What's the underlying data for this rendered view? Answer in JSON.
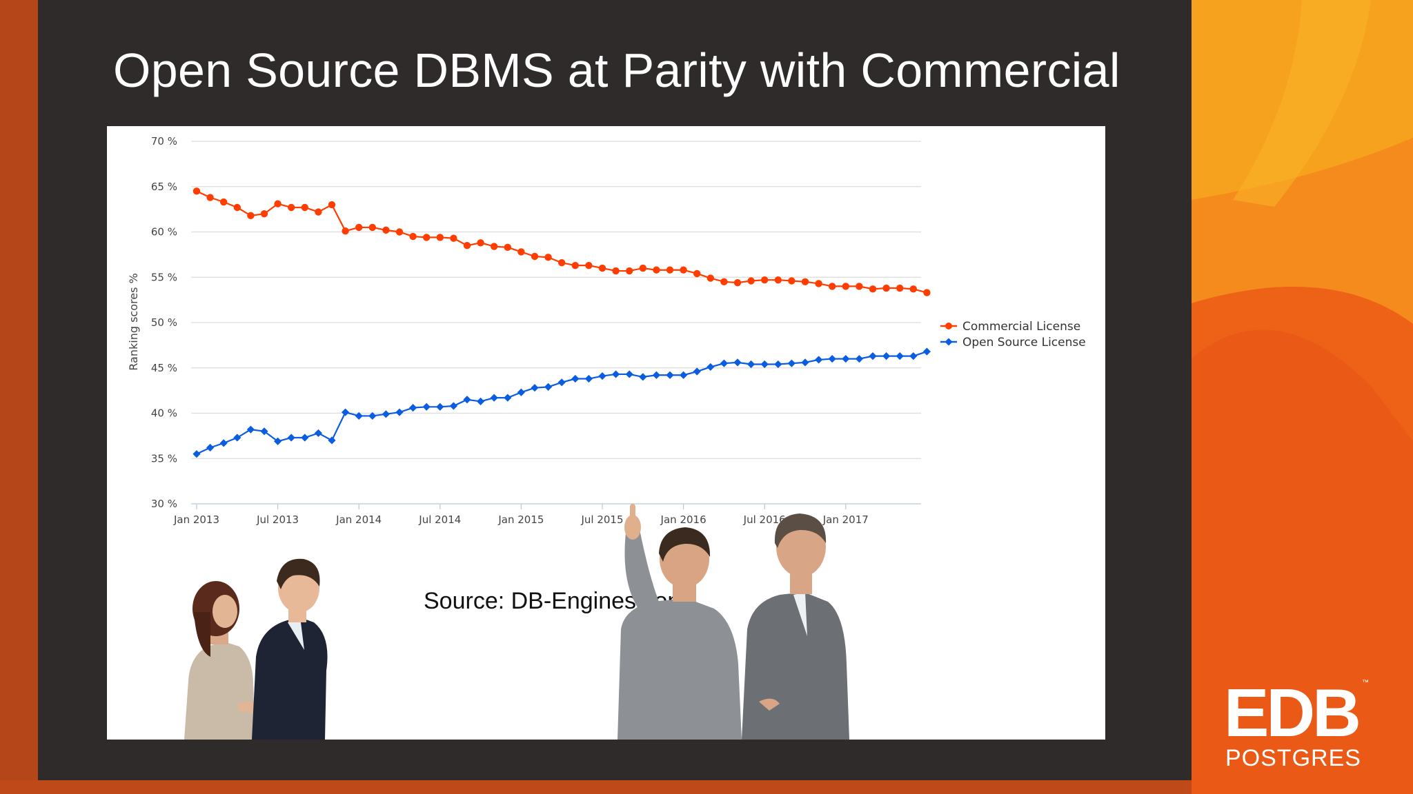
{
  "slide": {
    "title": "Open Source DBMS at Parity with Commercial",
    "source_note": "Source: DB-Engines.com"
  },
  "logo": {
    "mark": "EDB",
    "sub": "POSTGRES",
    "trademark": "™"
  },
  "colors": {
    "slide_bg": "#2f2b2b",
    "brand_orange": "#f26c16",
    "commercial_series": "#ff3d00",
    "open_source_series": "#0a5de0"
  },
  "chart_data": {
    "type": "line",
    "title": "",
    "xlabel": "",
    "ylabel": "Ranking scores %",
    "ylim": [
      30,
      70
    ],
    "yticks": [
      30,
      35,
      40,
      45,
      50,
      55,
      60,
      65,
      70
    ],
    "ytick_labels": [
      "30 %",
      "35 %",
      "40 %",
      "45 %",
      "50 %",
      "55 %",
      "60 %",
      "65 %",
      "70 %"
    ],
    "xticks": [
      "Jan 2013",
      "Jul 2013",
      "Jan 2014",
      "Jul 2014",
      "Jan 2015",
      "Jul 2015",
      "Jan 2016",
      "Jul 2016",
      "Jan 2017"
    ],
    "x_start": "Jan 2013",
    "x_end": "Jun 2017",
    "grid": true,
    "legend_position": "right",
    "series": [
      {
        "name": "Commercial License",
        "marker": "circle",
        "color": "#ff3d00",
        "values": [
          64.5,
          63.8,
          63.3,
          62.7,
          61.8,
          62.0,
          63.1,
          62.7,
          62.7,
          62.2,
          63.0,
          60.1,
          60.5,
          60.5,
          60.2,
          60.0,
          59.5,
          59.4,
          59.4,
          59.3,
          58.5,
          58.8,
          58.4,
          58.3,
          57.8,
          57.3,
          57.2,
          56.6,
          56.3,
          56.3,
          56.0,
          55.7,
          55.7,
          56.0,
          55.8,
          55.8,
          55.8,
          55.4,
          54.9,
          54.5,
          54.4,
          54.6,
          54.7,
          54.7,
          54.6,
          54.5,
          54.3,
          54.0,
          54.0,
          54.0,
          53.7,
          53.8,
          53.8,
          53.7,
          53.3
        ]
      },
      {
        "name": "Open Source License",
        "marker": "diamond",
        "color": "#0a5de0",
        "values": [
          35.5,
          36.2,
          36.7,
          37.3,
          38.2,
          38.0,
          36.9,
          37.3,
          37.3,
          37.8,
          37.0,
          40.1,
          39.7,
          39.7,
          39.9,
          40.1,
          40.6,
          40.7,
          40.7,
          40.8,
          41.5,
          41.3,
          41.7,
          41.7,
          42.3,
          42.8,
          42.9,
          43.4,
          43.8,
          43.8,
          44.1,
          44.3,
          44.3,
          44.0,
          44.2,
          44.2,
          44.2,
          44.6,
          45.1,
          45.5,
          45.6,
          45.4,
          45.4,
          45.4,
          45.5,
          45.6,
          45.9,
          46.0,
          46.0,
          46.0,
          46.3,
          46.3,
          46.3,
          46.3,
          46.8
        ]
      }
    ]
  }
}
